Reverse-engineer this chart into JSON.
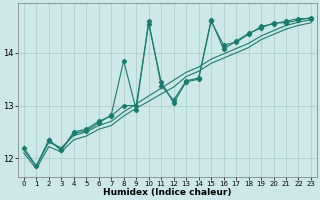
{
  "xlabel": "Humidex (Indice chaleur)",
  "ylabel": "",
  "bg_color": "#cce8e8",
  "line_color": "#1a7a6e",
  "xlim": [
    -0.5,
    23.5
  ],
  "ylim": [
    11.65,
    14.95
  ],
  "xticks": [
    0,
    1,
    2,
    3,
    4,
    5,
    6,
    7,
    8,
    9,
    10,
    11,
    12,
    13,
    14,
    15,
    16,
    17,
    18,
    19,
    20,
    21,
    22,
    23
  ],
  "yticks": [
    12,
    13,
    14
  ],
  "line1_x": [
    0,
    1,
    2,
    3,
    4,
    5,
    6,
    7,
    8,
    9,
    10,
    11,
    12,
    13,
    14,
    15,
    16,
    17,
    18,
    19,
    20,
    21,
    22,
    23
  ],
  "line1_y": [
    12.2,
    11.85,
    12.35,
    12.15,
    12.5,
    12.55,
    12.7,
    12.8,
    13.0,
    13.0,
    14.55,
    13.45,
    13.05,
    13.45,
    13.5,
    14.6,
    14.15,
    14.2,
    14.35,
    14.5,
    14.55,
    14.6,
    14.65,
    14.65
  ],
  "line2_x": [
    0,
    1,
    2,
    3,
    4,
    5,
    6,
    7,
    8,
    9,
    10,
    11,
    12,
    13,
    14,
    15,
    16,
    17,
    18,
    19,
    20,
    21,
    22,
    23
  ],
  "line2_y": [
    12.15,
    11.85,
    12.3,
    12.2,
    12.43,
    12.5,
    12.62,
    12.7,
    12.88,
    13.03,
    13.18,
    13.33,
    13.48,
    13.63,
    13.73,
    13.88,
    13.98,
    14.08,
    14.18,
    14.32,
    14.42,
    14.52,
    14.58,
    14.63
  ],
  "line3_x": [
    0,
    1,
    2,
    3,
    4,
    5,
    6,
    7,
    8,
    9,
    10,
    11,
    12,
    13,
    14,
    15,
    16,
    17,
    18,
    19,
    20,
    21,
    22,
    23
  ],
  "line3_y": [
    12.1,
    11.8,
    12.22,
    12.12,
    12.35,
    12.42,
    12.55,
    12.62,
    12.8,
    12.95,
    13.08,
    13.22,
    13.35,
    13.55,
    13.65,
    13.8,
    13.9,
    14.0,
    14.1,
    14.25,
    14.35,
    14.45,
    14.52,
    14.57
  ],
  "line4_x": [
    2,
    3,
    4,
    5,
    6,
    7,
    8,
    9,
    10,
    11,
    12,
    13,
    14,
    15,
    16,
    17,
    18,
    19,
    20,
    21,
    22,
    23
  ],
  "line4_y": [
    12.35,
    12.15,
    12.47,
    12.52,
    12.67,
    12.82,
    13.85,
    12.92,
    14.6,
    13.38,
    13.1,
    13.47,
    13.52,
    14.62,
    14.07,
    14.22,
    14.37,
    14.47,
    14.57,
    14.57,
    14.62,
    14.67
  ]
}
